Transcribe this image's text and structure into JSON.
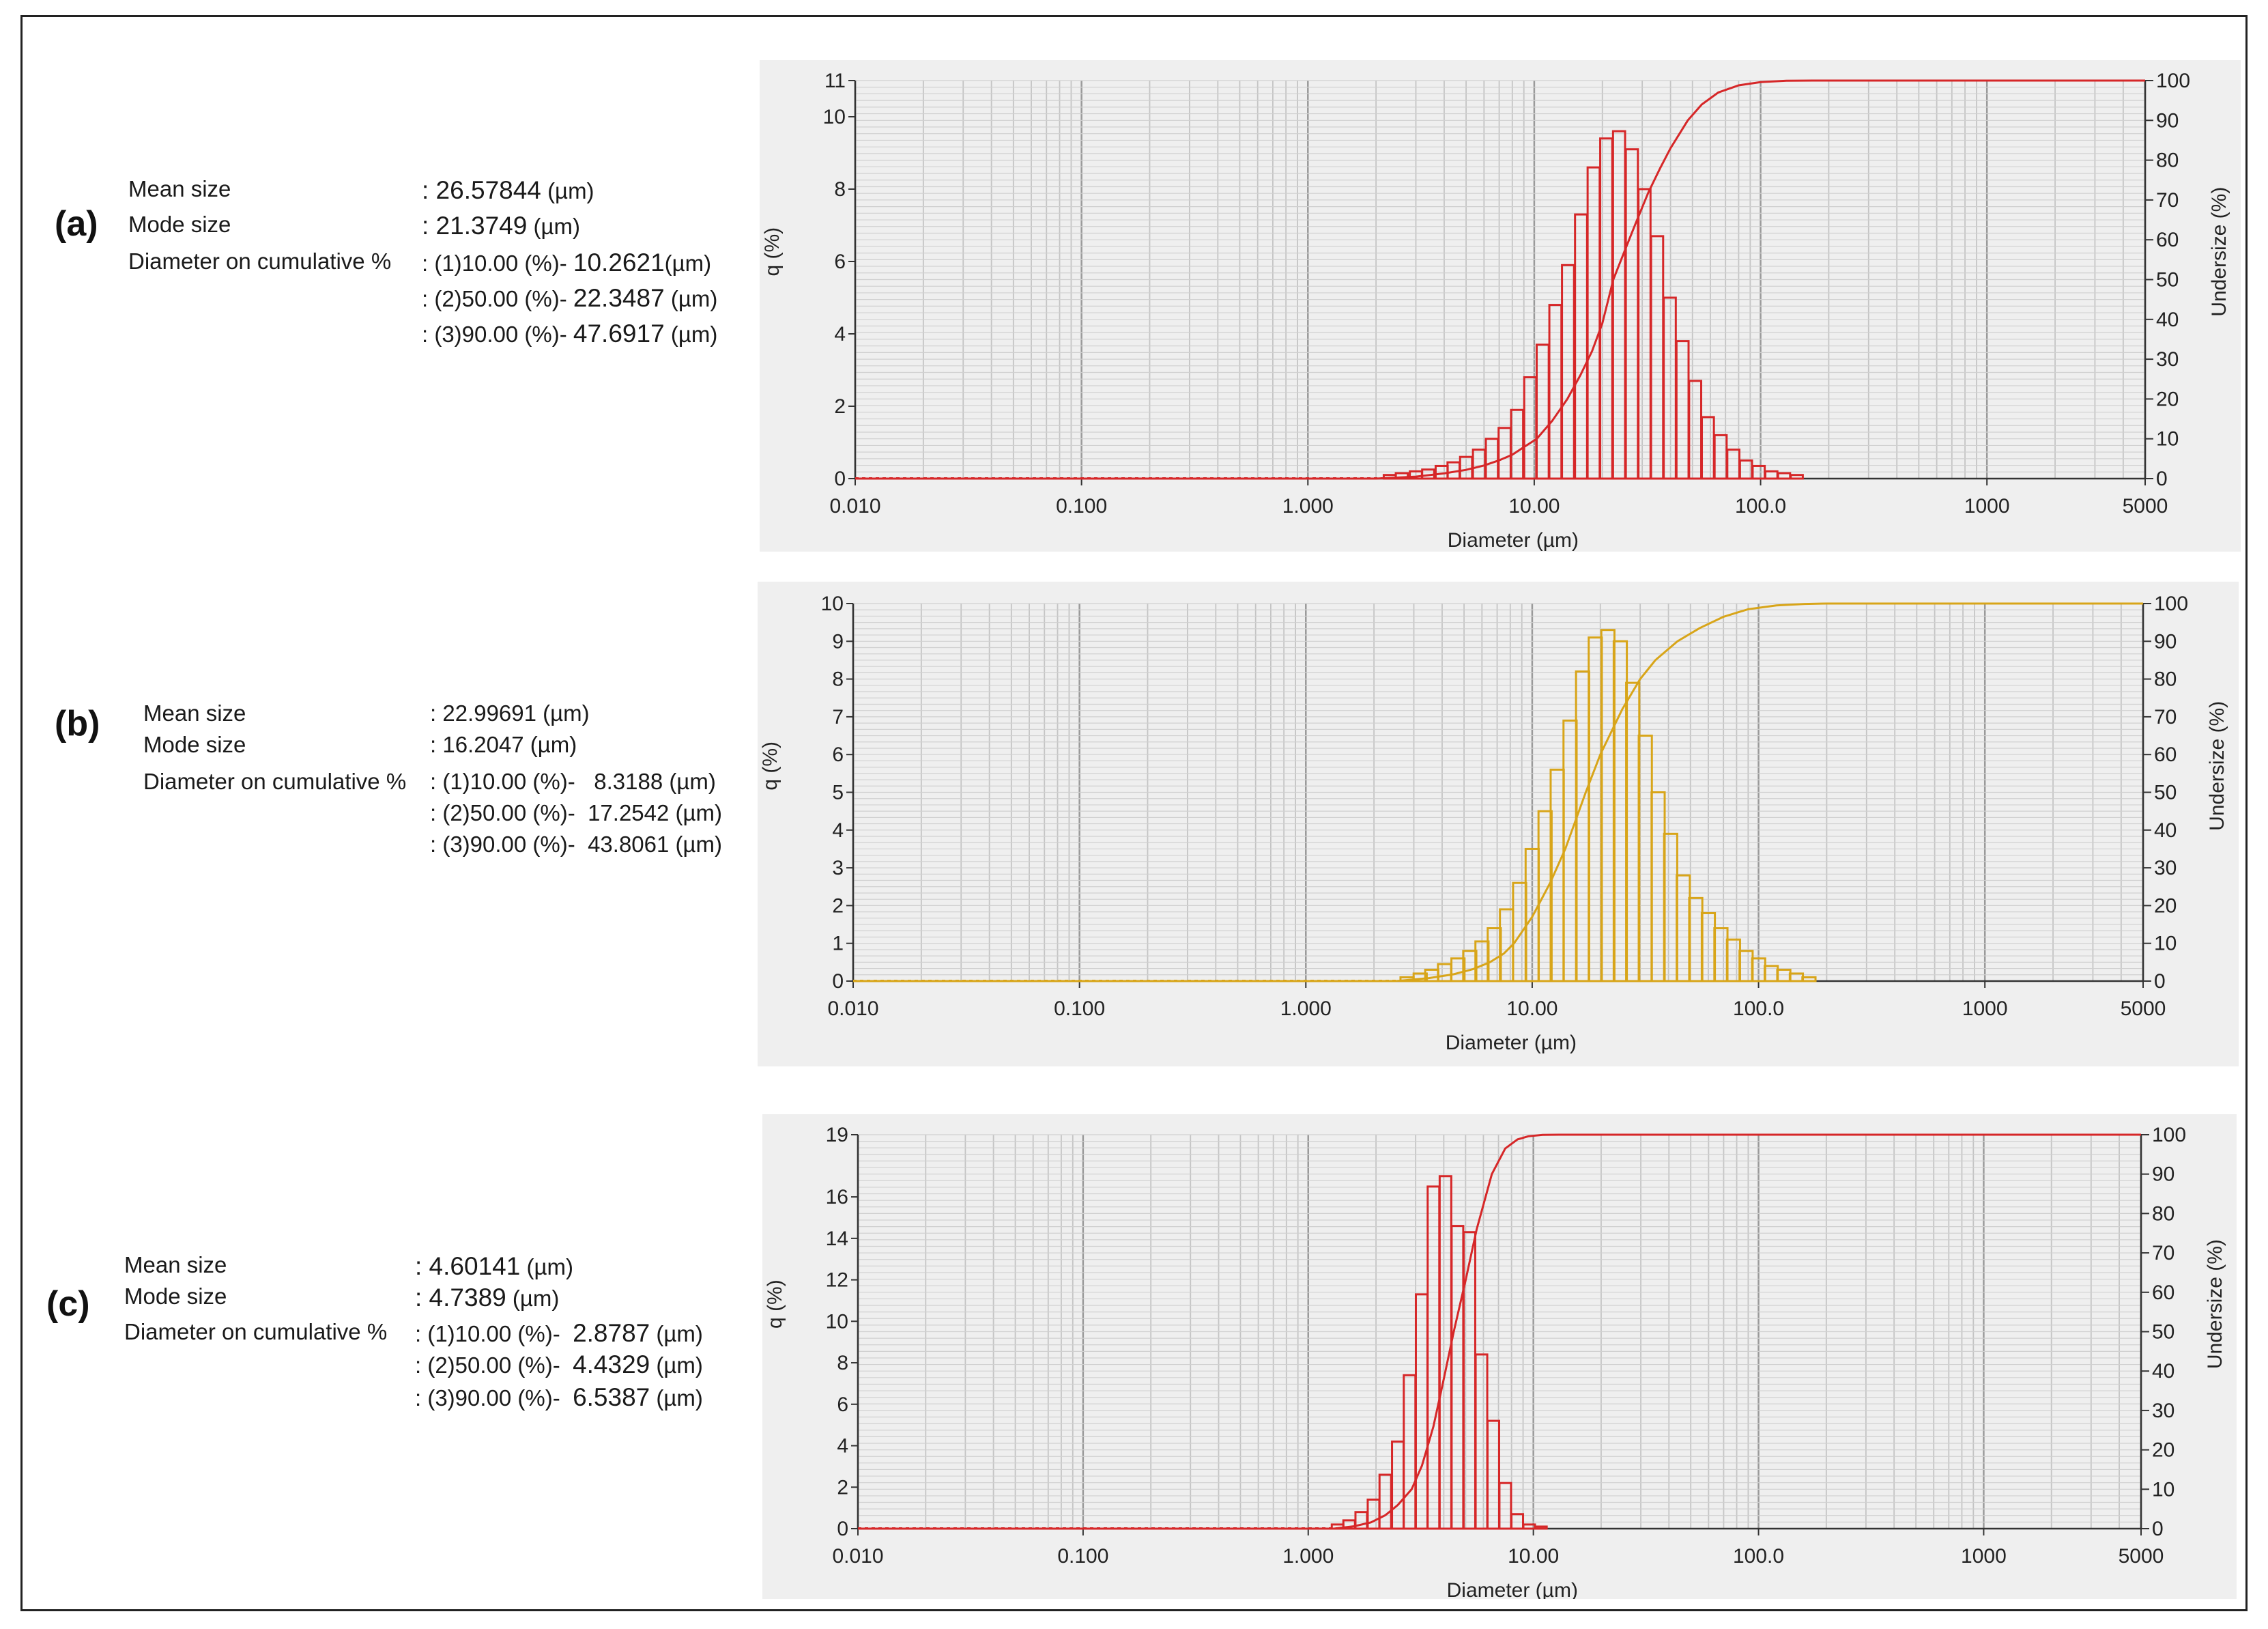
{
  "chart_data": [
    {
      "type": "bar",
      "panel_label": "(a)",
      "color": "#d62728",
      "xlabel": "Diameter (µm)",
      "ylabel": "q (%)",
      "y2label": "Undersize (%)",
      "xscale": "log",
      "xlim": [
        0.01,
        5000
      ],
      "ylim": [
        0,
        11
      ],
      "y2lim": [
        0,
        100
      ],
      "grid": true,
      "xticks": [
        "0.010",
        "0.100",
        "1.000",
        "10.00",
        "100.0",
        "1000",
        "5000"
      ],
      "yticks": [
        "0",
        "2",
        "4",
        "6",
        "8",
        "10",
        "11"
      ],
      "y2ticks": [
        "0",
        "10",
        "20",
        "30",
        "40",
        "50",
        "60",
        "70",
        "80",
        "90",
        "100"
      ],
      "bars": {
        "x": [
          2.3,
          2.6,
          3.0,
          3.4,
          3.9,
          4.4,
          5.0,
          5.7,
          6.5,
          7.4,
          8.4,
          9.6,
          10.9,
          12.4,
          14.1,
          16.1,
          18.3,
          20.8,
          23.7,
          27.0,
          30.7,
          34.9,
          39.7,
          45.2,
          51.4,
          58.5,
          66.6,
          75.8,
          86.2,
          98.1,
          111.6,
          127.0,
          144.5
        ],
        "values": [
          0.1,
          0.15,
          0.2,
          0.25,
          0.35,
          0.45,
          0.6,
          0.8,
          1.1,
          1.4,
          1.9,
          2.8,
          3.7,
          4.8,
          5.9,
          7.3,
          8.6,
          9.4,
          9.6,
          9.1,
          8.0,
          6.7,
          5.0,
          3.8,
          2.7,
          1.7,
          1.2,
          0.8,
          0.5,
          0.35,
          0.2,
          0.15,
          0.1
        ]
      },
      "cumulative": {
        "x": [
          0.01,
          2.0,
          3.0,
          4.0,
          5.0,
          6.0,
          7.0,
          8.0,
          9.0,
          10.26,
          12.0,
          14.0,
          16.0,
          18.0,
          20.0,
          22.35,
          25.0,
          28.0,
          32.0,
          36.0,
          40.0,
          47.69,
          55.0,
          65.0,
          80.0,
          100.0,
          130.0,
          170.0,
          5000
        ],
        "values": [
          0,
          0,
          0.5,
          1.3,
          2.2,
          3.3,
          4.6,
          6.0,
          7.9,
          10.0,
          14.5,
          20.0,
          26.0,
          32.0,
          39.0,
          50.0,
          57.0,
          64.0,
          72.0,
          78.0,
          83.0,
          90.0,
          94.0,
          97.0,
          98.8,
          99.6,
          99.95,
          100.0,
          100.0
        ]
      },
      "stats": {
        "mean_label": "Mean size",
        "mean_value": ": 26.57844",
        "mean_unit": "(µm)",
        "mode_label": "Mode size",
        "mode_value": ":  21.3749",
        "mode_unit": "(µm)",
        "cum_label": "Diameter on cumulative %",
        "cum": [
          {
            "prefix": ":  (1)10.00 (%)-",
            "value": "10.2621",
            "unit": "(µm)"
          },
          {
            "prefix": ":  (2)50.00 (%)-",
            "value": "22.3487",
            "unit": "(µm)"
          },
          {
            "prefix": ":  (3)90.00 (%)-",
            "value": "47.6917",
            "unit": "(µm)"
          }
        ]
      }
    },
    {
      "type": "bar",
      "panel_label": "(b)",
      "color": "#d8a519",
      "xlabel": "Diameter (µm)",
      "ylabel": "q (%)",
      "y2label": "Undersize (%)",
      "xscale": "log",
      "xlim": [
        0.01,
        5000
      ],
      "ylim": [
        0,
        10
      ],
      "y2lim": [
        0,
        100
      ],
      "grid": true,
      "xticks": [
        "0.010",
        "0.100",
        "1.000",
        "10.00",
        "100.0",
        "1000",
        "5000"
      ],
      "yticks": [
        "0",
        "1",
        "2",
        "3",
        "4",
        "5",
        "6",
        "7",
        "8",
        "9",
        "10"
      ],
      "y2ticks": [
        "0",
        "10",
        "20",
        "30",
        "40",
        "50",
        "60",
        "70",
        "80",
        "90",
        "100"
      ],
      "bars": {
        "x": [
          2.8,
          3.2,
          3.6,
          4.1,
          4.7,
          5.3,
          6.0,
          6.8,
          7.7,
          8.8,
          10.0,
          11.4,
          12.9,
          14.7,
          16.7,
          19.0,
          21.6,
          24.5,
          27.8,
          31.6,
          36.0,
          40.9,
          46.5,
          52.8,
          60.0,
          68.2,
          77.5,
          88.1,
          100.1,
          113.8,
          129.3,
          146.9,
          167.0
        ],
        "values": [
          0.1,
          0.2,
          0.3,
          0.45,
          0.6,
          0.8,
          1.05,
          1.4,
          1.9,
          2.6,
          3.5,
          4.5,
          5.6,
          6.9,
          8.2,
          9.1,
          9.3,
          9.0,
          7.9,
          6.5,
          5.0,
          3.9,
          2.8,
          2.2,
          1.8,
          1.4,
          1.1,
          0.8,
          0.6,
          0.4,
          0.3,
          0.2,
          0.1
        ]
      },
      "cumulative": {
        "x": [
          0.01,
          2.5,
          3.5,
          4.5,
          5.5,
          6.5,
          7.5,
          8.32,
          10.0,
          12.0,
          14.0,
          17.25,
          20.0,
          25.0,
          30.0,
          35.0,
          43.81,
          55.0,
          70.0,
          90.0,
          120.0,
          160.0,
          200.0,
          5000
        ],
        "values": [
          0,
          0,
          0.8,
          1.8,
          3.2,
          5.0,
          7.3,
          10.0,
          17.0,
          26.0,
          35.0,
          50.0,
          60.0,
          72.0,
          80.0,
          85.0,
          90.0,
          93.5,
          96.5,
          98.5,
          99.5,
          99.9,
          100.0,
          100.0
        ]
      },
      "stats": {
        "mean_label": "Mean size",
        "mean_value": ":   22.99691",
        "mean_unit": "(µm)",
        "mode_label": "Mode size",
        "mode_value": ":    16.2047",
        "mode_unit": "(µm)",
        "cum_label": "Diameter on cumulative %",
        "cum": [
          {
            "prefix": ":  (1)10.00 (%)-",
            "value": "8.3188",
            "unit": "(µm)"
          },
          {
            "prefix": ":  (2)50.00 (%)-",
            "value": "17.2542",
            "unit": "(µm)"
          },
          {
            "prefix": ":  (3)90.00 (%)-",
            "value": "43.8061",
            "unit": "(µm)"
          }
        ]
      }
    },
    {
      "type": "bar",
      "panel_label": "(c)",
      "color": "#d62728",
      "xlabel": "Diameter (µm)",
      "ylabel": "q (%)",
      "y2label": "Undersize (%)",
      "xscale": "log",
      "xlim": [
        0.01,
        5000
      ],
      "ylim": [
        0,
        19
      ],
      "y2lim": [
        0,
        100
      ],
      "grid": true,
      "xticks": [
        "0.010",
        "0.100",
        "1.000",
        "10.00",
        "100.0",
        "1000",
        "5000"
      ],
      "yticks": [
        "0",
        "2",
        "4",
        "6",
        "8",
        "10",
        "12",
        "14",
        "16",
        "19"
      ],
      "y2ticks": [
        "0",
        "10",
        "20",
        "30",
        "40",
        "50",
        "60",
        "70",
        "80",
        "90",
        "100"
      ],
      "bars": {
        "x": [
          1.35,
          1.52,
          1.72,
          1.95,
          2.2,
          2.5,
          2.82,
          3.19,
          3.6,
          4.07,
          4.6,
          5.2,
          5.88,
          6.64,
          7.5,
          8.48,
          9.58,
          10.8
        ],
        "values": [
          0.2,
          0.4,
          0.8,
          1.4,
          2.6,
          4.2,
          7.4,
          11.3,
          16.5,
          17.0,
          14.6,
          14.3,
          8.4,
          5.2,
          2.2,
          0.7,
          0.2,
          0.1
        ]
      },
      "cumulative": {
        "x": [
          0.01,
          1.3,
          1.6,
          1.9,
          2.2,
          2.5,
          2.88,
          3.2,
          3.6,
          4.0,
          4.43,
          5.0,
          5.6,
          6.54,
          7.5,
          8.5,
          9.5,
          11.0,
          13.0,
          5000
        ],
        "values": [
          0,
          0,
          0.6,
          1.6,
          3.4,
          6.0,
          10.0,
          16.0,
          26.0,
          38.0,
          50.0,
          63.0,
          76.0,
          90.0,
          96.5,
          98.8,
          99.6,
          99.95,
          100.0,
          100.0
        ]
      },
      "stats": {
        "mean_label": "Mean size",
        "mean_value": ": 4.60141",
        "mean_unit": "(µm)",
        "mode_label": "Mode size",
        "mode_value": ":  4.7389",
        "mode_unit": "(µm)",
        "cum_label": "Diameter on cumulative %",
        "cum": [
          {
            "prefix": ": (1)10.00 (%)-",
            "value": "2.8787",
            "unit": "(µm)"
          },
          {
            "prefix": ": (2)50.00 (%)-",
            "value": "4.4329",
            "unit": "(µm)"
          },
          {
            "prefix": ": (3)90.00 (%)-",
            "value": "6.5387",
            "unit": "(µm)"
          }
        ]
      }
    }
  ]
}
